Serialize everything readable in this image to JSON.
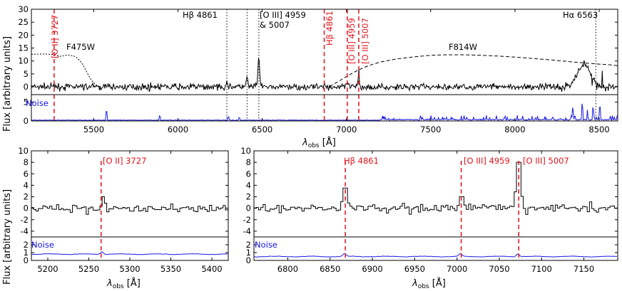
{
  "chart_data": {
    "type": "line",
    "title": "",
    "colors": {
      "spectrum": "#000000",
      "noise": "#1a1ae6",
      "emission_line": "#e8121a",
      "filter": "#000000"
    },
    "top_panel": {
      "ylabel": "Flux [arbitrary units]",
      "xlabel_main": "λ",
      "xlabel_sub": "obs",
      "xlabel_unit": " [Å]",
      "xlim": [
        5130,
        8610
      ],
      "flux_ylim": [
        -3,
        30
      ],
      "flux_yticks": [
        0,
        5,
        10,
        15,
        20,
        25,
        30
      ],
      "noise_ylim": [
        0,
        7
      ],
      "noise_yticks": [
        0,
        5
      ],
      "xticks": [
        5500,
        6000,
        6500,
        7000,
        7500,
        8000,
        8500
      ],
      "noise_label": "Noise",
      "filters": [
        {
          "label": "F475W",
          "x": [
            5130,
            5200,
            5260,
            5300,
            5340,
            5380,
            5400,
            5420,
            5440,
            5460,
            5480,
            5500,
            5520,
            5540
          ],
          "y": [
            12.6,
            12.7,
            12.5,
            11.8,
            12.3,
            12.0,
            11.3,
            10.0,
            8.2,
            5.6,
            3.2,
            1.5,
            0.5,
            0
          ]
        },
        {
          "label": "F814W",
          "x": [
            6900,
            6950,
            7000,
            7050,
            7100,
            7150,
            7200,
            7300,
            7400,
            7500,
            7600,
            7700,
            7800,
            7900,
            8000,
            8100,
            8200,
            8300,
            8400,
            8500,
            8550,
            8610
          ],
          "y": [
            0.2,
            2.0,
            4.0,
            5.8,
            7.4,
            8.6,
            9.6,
            10.8,
            11.6,
            12.2,
            12.4,
            12.4,
            12.2,
            11.9,
            11.5,
            11.0,
            10.5,
            9.9,
            9.3,
            8.8,
            8.6,
            8.2
          ]
        }
      ],
      "emission_lines": [
        {
          "label": "[O II] 3727",
          "x": 5265,
          "color": "red",
          "style": "dashed"
        },
        {
          "label": "Hβ 4861",
          "x": 6868,
          "color": "red",
          "style": "dashed"
        },
        {
          "label": "[O III] 4959",
          "x": 7005,
          "color": "red",
          "style": "dashed"
        },
        {
          "label": "[O III] 5007",
          "x": 7073,
          "color": "red",
          "style": "dashed"
        },
        {
          "label": "Hβ 4861",
          "x": 6290,
          "color": "black",
          "style": "dotted"
        },
        {
          "label": "",
          "x": 6410,
          "color": "black",
          "style": "dotted"
        },
        {
          "label": "[O III] 4959 & 5007",
          "x": 6480,
          "color": "black",
          "style": "dotted"
        },
        {
          "label": "Hα 6563",
          "x": 8480,
          "color": "black",
          "style": "dotted"
        }
      ],
      "annotations": {
        "hb_black": "Hβ 4861",
        "oiii_black_line1": "[O III] 4959",
        "oiii_black_line2": "& 5007",
        "ha_black": "Hα 6563",
        "oii_red": "[O II] 3727",
        "hb_red": "Hβ 4861",
        "oiii4959_red": "[O III] 4959",
        "oiii5007_red": "[O III] 5007"
      },
      "flux_features": [
        {
          "x": 6290,
          "amp": 2.5,
          "width": 4
        },
        {
          "x": 6410,
          "amp": 3.5,
          "width": 5
        },
        {
          "x": 6480,
          "amp": 11.5,
          "width": 5
        },
        {
          "x": 6868,
          "amp": 1.5,
          "width": 3
        },
        {
          "x": 7005,
          "amp": 2.0,
          "width": 3
        },
        {
          "x": 7073,
          "amp": 6.5,
          "width": 3
        },
        {
          "x": 8410,
          "amp": 8.5,
          "width": 40
        }
      ],
      "noise_features": [
        {
          "x": 5577,
          "amp": 2.3
        },
        {
          "x": 5893,
          "amp": 1.1
        },
        {
          "x": 6300,
          "amp": 0.9
        },
        {
          "x": 6364,
          "amp": 0.6
        },
        {
          "x": 8345,
          "amp": 2.4
        },
        {
          "x": 8400,
          "amp": 3.2
        },
        {
          "x": 8430,
          "amp": 2.6
        },
        {
          "x": 8465,
          "amp": 2.8
        },
        {
          "x": 8505,
          "amp": 3.3
        }
      ]
    },
    "bottom_left": {
      "ylabel": "Flux [arbitrary units]",
      "xlabel_main": "λ",
      "xlabel_sub": "obs",
      "xlabel_unit": " [Å]",
      "xlim": [
        5180,
        5420
      ],
      "xticks": [
        5200,
        5250,
        5300,
        5350,
        5400
      ],
      "flux_ylim": [
        -5,
        10
      ],
      "flux_yticks": [
        -4,
        -2,
        0,
        2,
        4,
        6,
        8,
        10
      ],
      "noise_ylim": [
        0,
        3
      ],
      "noise_yticks": [
        0,
        1,
        2
      ],
      "noise_label": "Noise",
      "noise_level": 0.8,
      "emission_lines": [
        {
          "label": "[O II] 3727",
          "x": 5265
        }
      ],
      "peaks": [
        {
          "x": 5266,
          "amp": 2.0
        }
      ]
    },
    "bottom_right": {
      "xlabel_main": "λ",
      "xlabel_sub": "obs",
      "xlabel_unit": " [Å]",
      "xlim": [
        6760,
        7190
      ],
      "xticks": [
        6800,
        6850,
        6900,
        6950,
        7000,
        7050,
        7100,
        7150
      ],
      "flux_ylim": [
        -5,
        10
      ],
      "flux_yticks": [
        -4,
        -2,
        0,
        2,
        4,
        6,
        8,
        10
      ],
      "noise_ylim": [
        0,
        3
      ],
      "noise_yticks": [
        0,
        1,
        2
      ],
      "noise_label": "Noise",
      "noise_level": 0.5,
      "emission_lines": [
        {
          "label": "Hβ 4861",
          "x": 6868
        },
        {
          "label": "[O III] 4959",
          "x": 7005
        },
        {
          "label": "[O III] 5007",
          "x": 7073
        }
      ],
      "peaks": [
        {
          "x": 6867,
          "amp": 3.5
        },
        {
          "x": 7004,
          "amp": 2.0
        },
        {
          "x": 7072,
          "amp": 8.0
        }
      ]
    }
  }
}
